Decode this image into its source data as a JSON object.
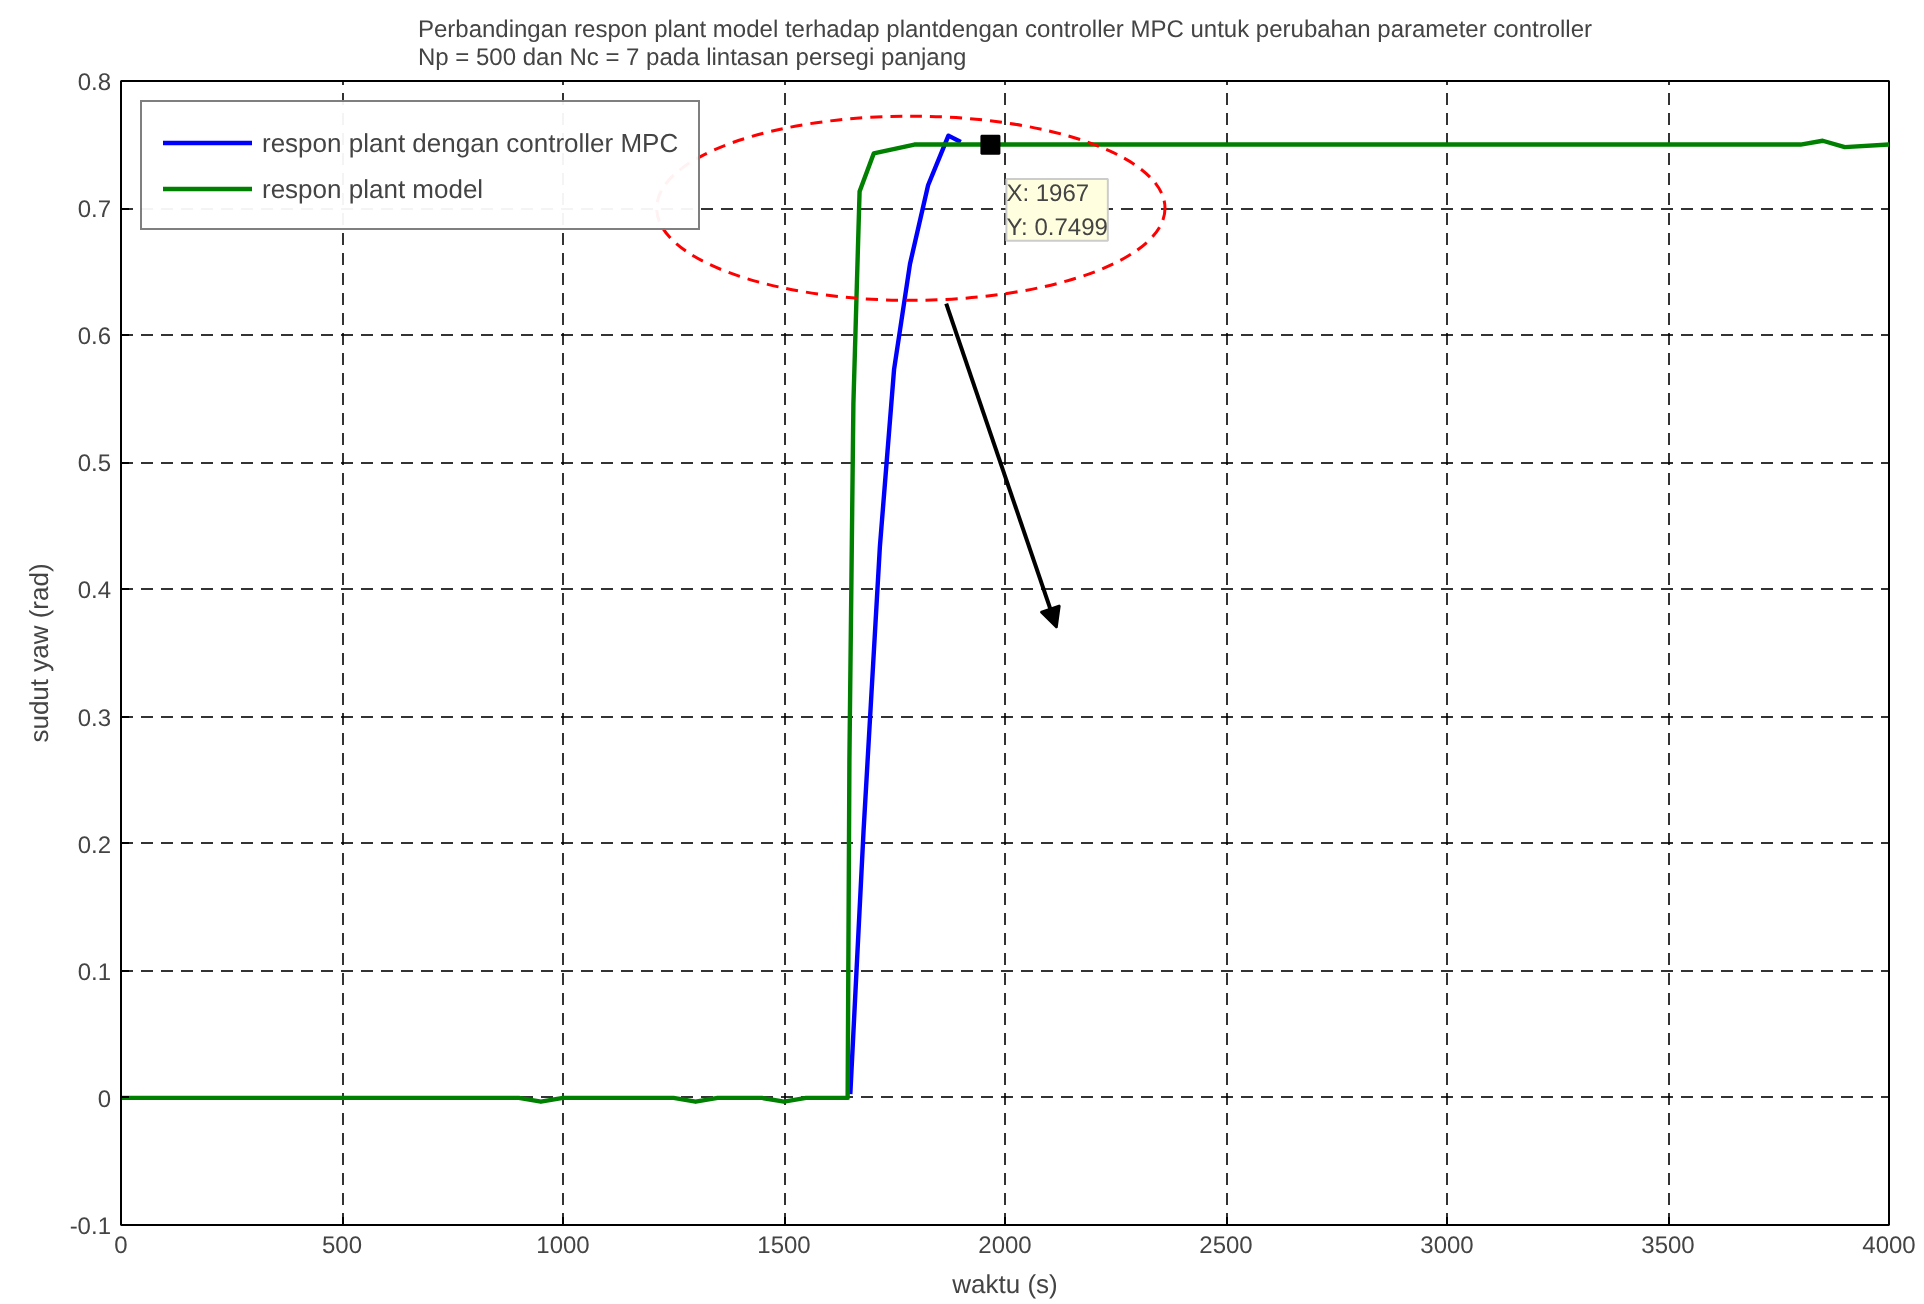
{
  "chart_data": {
    "type": "line",
    "title": "Perbandingan respon plant model terhadap plantdengan controller MPC untuk perubahan parameter controller\nNp = 500 dan Nc = 7 pada lintasan persegi panjang",
    "xlabel": "waktu (s)",
    "ylabel": "sudut yaw (rad)",
    "xlim": [
      0,
      4000
    ],
    "ylim": [
      -0.1,
      0.8
    ],
    "xticks": [
      0,
      500,
      1000,
      1500,
      2000,
      2500,
      3000,
      3500,
      4000
    ],
    "yticks": [
      -0.1,
      0,
      0.1,
      0.2,
      0.3,
      0.4,
      0.5,
      0.6,
      0.7,
      0.8
    ],
    "grid": true,
    "legend": "top left",
    "line_style": "solid",
    "marker": "none",
    "series": [
      {
        "name": "respon plant dengan controller MPC",
        "color": "#0000ff",
        "x": [
          1650,
          1680,
          1717,
          1749,
          1785,
          1826,
          1872,
          1900
        ],
        "values": [
          0.003,
          0.21,
          0.434,
          0.573,
          0.656,
          0.718,
          0.757,
          0.752
        ]
      },
      {
        "name": "respon plant model",
        "color": "#008000",
        "x": [
          0,
          900,
          950,
          1000,
          1250,
          1300,
          1350,
          1450,
          1500,
          1550,
          1600,
          1644,
          1648,
          1657,
          1671,
          1703,
          1795,
          1967,
          2500,
          3000,
          3500,
          3800,
          3850,
          3900,
          4000
        ],
        "values": [
          0,
          0,
          -0.003,
          0,
          0,
          -0.003,
          0,
          0,
          -0.003,
          0,
          0,
          0,
          0.267,
          0.546,
          0.713,
          0.743,
          0.75,
          0.75,
          0.75,
          0.75,
          0.75,
          0.75,
          0.753,
          0.748,
          0.75
        ]
      }
    ],
    "annotations": [
      {
        "text": "X: 1967\nY: 0.7499",
        "x": 1967,
        "y": 0.7499
      }
    ]
  }
}
